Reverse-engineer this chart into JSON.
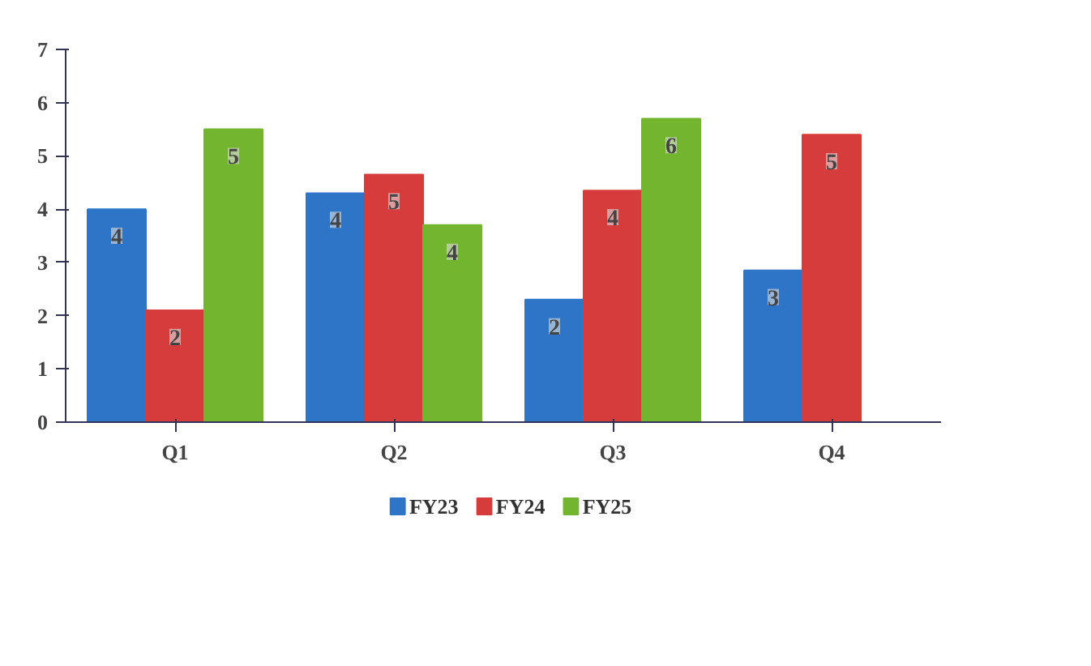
{
  "chart_data": {
    "type": "bar",
    "categories": [
      "Q1",
      "Q2",
      "Q3",
      "Q4"
    ],
    "series": [
      {
        "name": "FY23",
        "color": "#2e75c8",
        "values": [
          4.0,
          4.3,
          2.3,
          2.85
        ],
        "value_labels": [
          "4",
          "4",
          "2",
          "3"
        ]
      },
      {
        "name": "FY24",
        "color": "#d63c3c",
        "values": [
          2.1,
          4.65,
          4.35,
          5.4
        ],
        "value_labels": [
          "2",
          "5",
          "4",
          "5"
        ]
      },
      {
        "name": "FY25",
        "color": "#74b530",
        "values": [
          5.5,
          3.7,
          5.7,
          null
        ],
        "value_labels": [
          "5",
          "4",
          "6",
          null
        ]
      }
    ],
    "ylim": [
      0,
      7
    ],
    "yticks": [
      0,
      1,
      2,
      3,
      4,
      5,
      6,
      7
    ],
    "grid": false,
    "legend": "bottom"
  }
}
